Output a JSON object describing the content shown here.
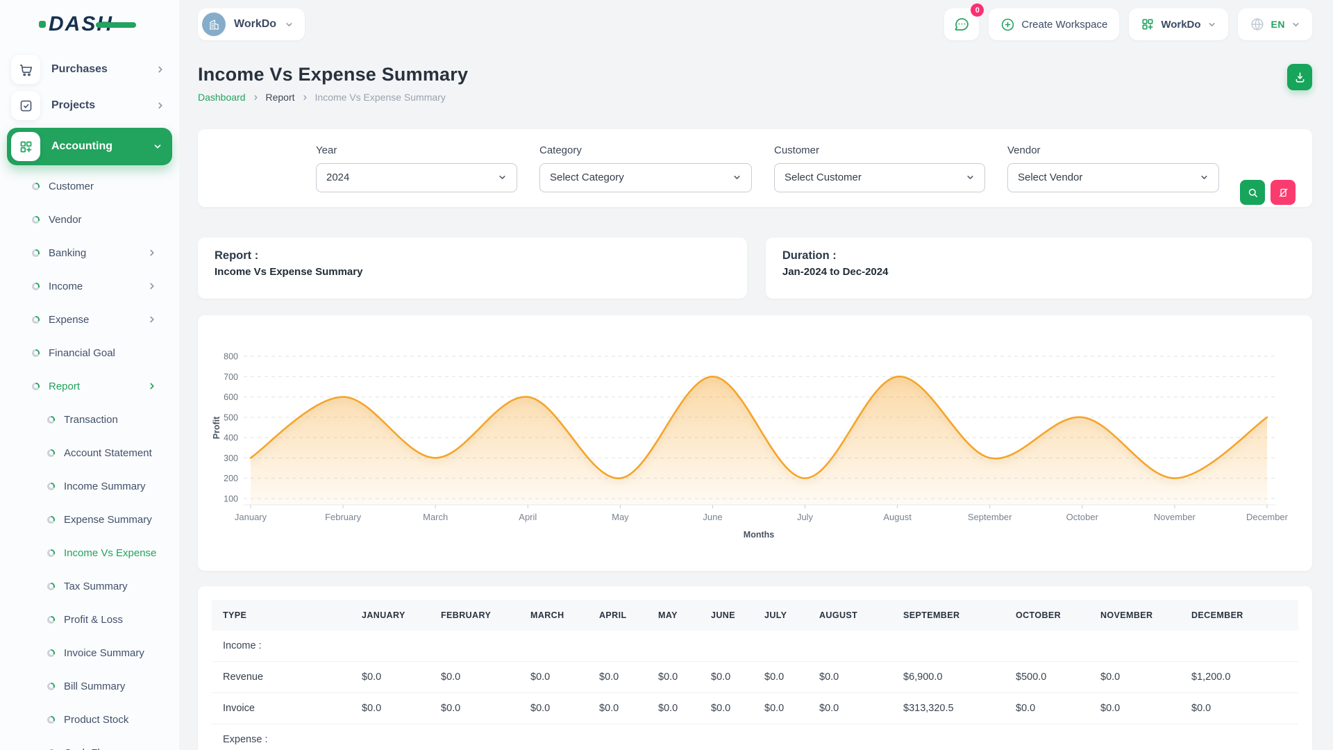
{
  "brand": {
    "logo_text": "DASH"
  },
  "workspace": {
    "name": "WorkDo"
  },
  "header": {
    "chat_badge": "0",
    "create_workspace_label": "Create Workspace",
    "workspace_menu_label": "WorkDo",
    "language": "EN"
  },
  "sidebar": {
    "items": [
      {
        "label": "Purchases",
        "type": "top",
        "icon": "cart-icon",
        "chevron": "right"
      },
      {
        "label": "Projects",
        "type": "top",
        "icon": "tasks-icon",
        "chevron": "right"
      },
      {
        "label": "Accounting",
        "type": "top",
        "icon": "grid-plus-icon",
        "chevron": "down",
        "active": true
      },
      {
        "label": "Customer",
        "type": "sub"
      },
      {
        "label": "Vendor",
        "type": "sub"
      },
      {
        "label": "Banking",
        "type": "sub",
        "chevron": "right"
      },
      {
        "label": "Income",
        "type": "sub",
        "chevron": "right"
      },
      {
        "label": "Expense",
        "type": "sub",
        "chevron": "right"
      },
      {
        "label": "Financial Goal",
        "type": "sub"
      },
      {
        "label": "Report",
        "type": "sub",
        "chevron": "right",
        "active": true
      },
      {
        "label": "Transaction",
        "type": "sub2"
      },
      {
        "label": "Account Statement",
        "type": "sub2"
      },
      {
        "label": "Income Summary",
        "type": "sub2"
      },
      {
        "label": "Expense Summary",
        "type": "sub2"
      },
      {
        "label": "Income Vs Expense",
        "type": "sub2",
        "active": true
      },
      {
        "label": "Tax Summary",
        "type": "sub2"
      },
      {
        "label": "Profit & Loss",
        "type": "sub2"
      },
      {
        "label": "Invoice Summary",
        "type": "sub2"
      },
      {
        "label": "Bill Summary",
        "type": "sub2"
      },
      {
        "label": "Product Stock",
        "type": "sub2"
      },
      {
        "label": "Cash Flow",
        "type": "sub2"
      }
    ]
  },
  "page": {
    "title": "Income Vs Expense Summary",
    "breadcrumb": [
      "Dashboard",
      "Report",
      "Income Vs Expense Summary"
    ]
  },
  "filters": {
    "fields": [
      {
        "label": "Year",
        "value": "2024"
      },
      {
        "label": "Category",
        "value": "Select Category"
      },
      {
        "label": "Customer",
        "value": "Select Customer"
      },
      {
        "label": "Vendor",
        "value": "Select Vendor"
      }
    ]
  },
  "summary": {
    "report_label": "Report :",
    "report_value": "Income Vs Expense Summary",
    "duration_label": "Duration :",
    "duration_value": "Jan-2024 to Dec-2024"
  },
  "chart_data": {
    "type": "area",
    "x": [
      "January",
      "February",
      "March",
      "April",
      "May",
      "June",
      "July",
      "August",
      "September",
      "October",
      "November",
      "December"
    ],
    "series": [
      {
        "name": "Profit",
        "values": [
          300,
          600,
          300,
          600,
          200,
          700,
          200,
          700,
          300,
          500,
          200,
          500
        ]
      }
    ],
    "xlabel": "Months",
    "ylabel": "Profit",
    "ylim": [
      100,
      800
    ],
    "yticks": [
      100,
      200,
      300,
      400,
      500,
      600,
      700,
      800
    ],
    "grid": true,
    "legend": false,
    "line_color": "#f6a42b",
    "fill_color": "#f6a42b"
  },
  "table": {
    "columns": [
      "TYPE",
      "JANUARY",
      "FEBRUARY",
      "MARCH",
      "APRIL",
      "MAY",
      "JUNE",
      "JULY",
      "AUGUST",
      "SEPTEMBER",
      "OCTOBER",
      "NOVEMBER",
      "DECEMBER"
    ],
    "rows": [
      {
        "type": "section",
        "label": "Income :"
      },
      {
        "type": "data",
        "label": "Revenue",
        "values": [
          "$0.0",
          "$0.0",
          "$0.0",
          "$0.0",
          "$0.0",
          "$0.0",
          "$0.0",
          "$0.0",
          "$6,900.0",
          "$500.0",
          "$0.0",
          "$1,200.0"
        ]
      },
      {
        "type": "data",
        "label": "Invoice",
        "values": [
          "$0.0",
          "$0.0",
          "$0.0",
          "$0.0",
          "$0.0",
          "$0.0",
          "$0.0",
          "$0.0",
          "$313,320.5",
          "$0.0",
          "$0.0",
          "$0.0"
        ]
      },
      {
        "type": "section",
        "label": "Expense :"
      }
    ]
  },
  "colors": {
    "accent_green": "#22a35e",
    "pink": "#fb3b6e",
    "badge_pink": "#fb2f72",
    "chart_orange": "#f6a42b",
    "logo_navy": "#16304f",
    "page_background": "#f3f4f6"
  }
}
